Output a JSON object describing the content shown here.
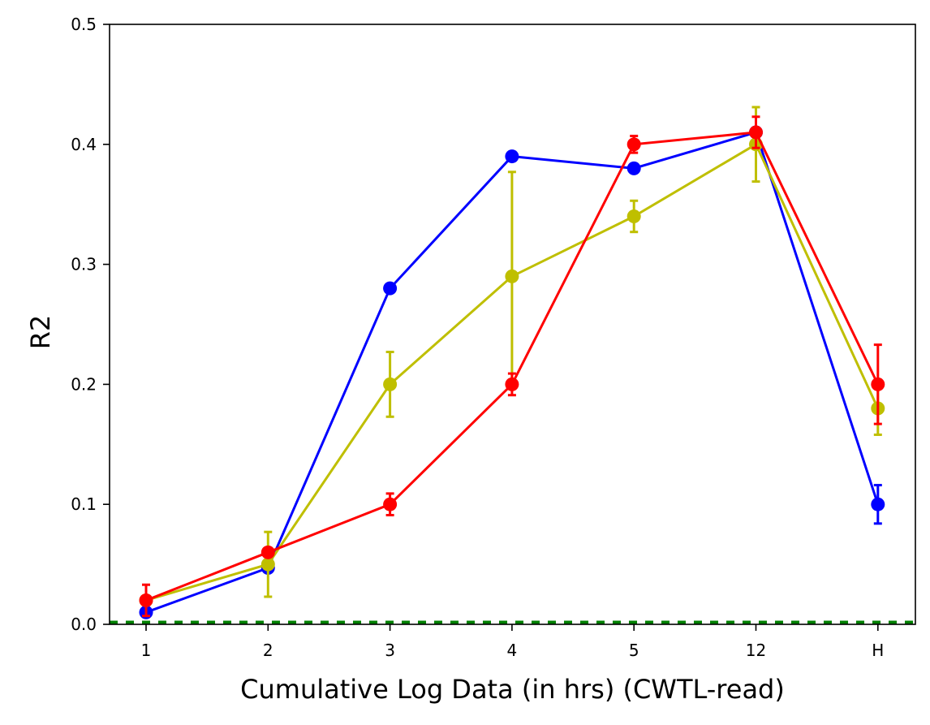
{
  "chart_data": {
    "type": "line",
    "title": "",
    "xlabel": "Cumulative Log Data (in hrs) (CWTL-read)",
    "ylabel": "R2",
    "categories": [
      "1",
      "2",
      "3",
      "4",
      "5",
      "12",
      "H"
    ],
    "ylim": [
      0,
      0.5
    ],
    "yticks": [
      "0.0",
      "0.1",
      "0.2",
      "0.3",
      "0.4",
      "0.5"
    ],
    "grid": false,
    "legend": "none",
    "baseline": {
      "value": 0.0,
      "color": "#008000",
      "style": "dashed"
    },
    "series": [
      {
        "name": "blue",
        "color": "#0000ff",
        "values": [
          0.01,
          0.047,
          0.28,
          0.39,
          0.38,
          0.41,
          0.1
        ],
        "errors": [
          0,
          0,
          0,
          0,
          0,
          0,
          0.016
        ]
      },
      {
        "name": "yellow",
        "color": "#bfbf00",
        "values": [
          0.02,
          0.05,
          0.2,
          0.29,
          0.34,
          0.4,
          0.18
        ],
        "errors": [
          0,
          0.027,
          0.027,
          0.087,
          0.013,
          0.031,
          0.022
        ]
      },
      {
        "name": "red",
        "color": "#ff0000",
        "values": [
          0.02,
          0.06,
          0.1,
          0.2,
          0.4,
          0.41,
          0.2
        ],
        "errors": [
          0.013,
          0,
          0.009,
          0.009,
          0.007,
          0.013,
          0.033
        ]
      }
    ]
  }
}
